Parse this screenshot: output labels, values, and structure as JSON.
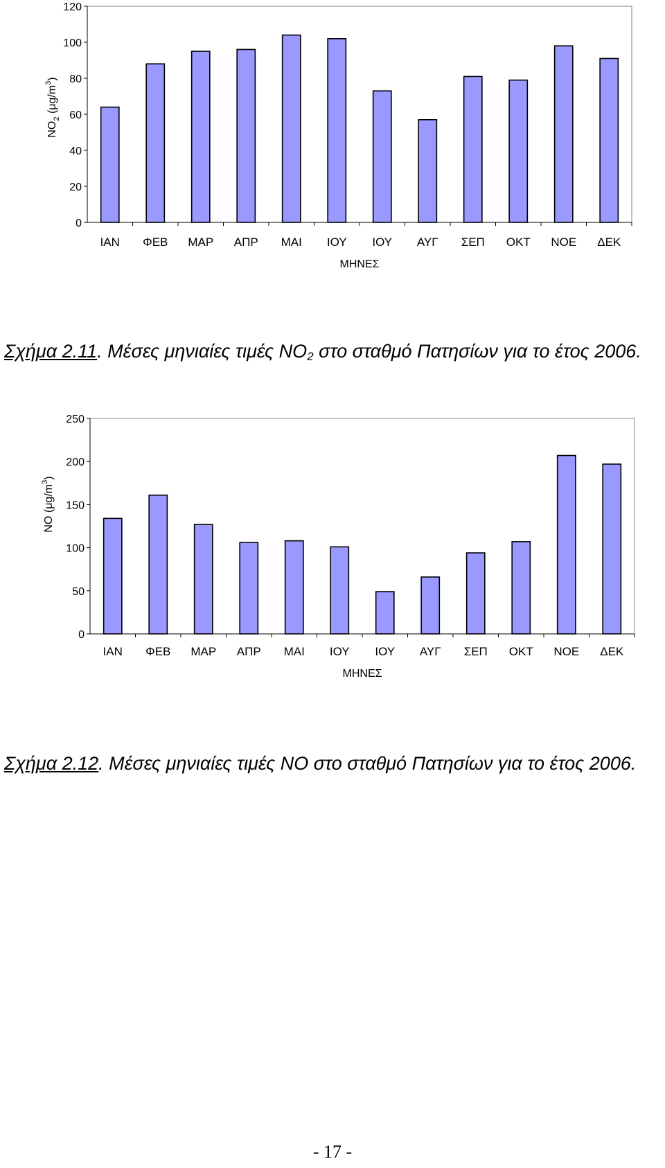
{
  "charts": [
    {
      "id": "chart1",
      "ylabel_main": "NO",
      "ylabel_sub": "2",
      "ylabel_unit": " (μg/m",
      "ylabel_sup": "3",
      "ylabel_close": ")",
      "caption": {
        "ref": "Σχήμα 2.11",
        "text_before": ". Μέσες μηνιαίες τιμές NO",
        "sub": "2",
        "text_after": " στο σταθμό Πατησίων  για το έτος 2006."
      }
    },
    {
      "id": "chart2",
      "ylabel_main": "NO (μg/m",
      "ylabel_sup": "3",
      "ylabel_close": ")",
      "caption": {
        "ref": "Σχήμα 2.12",
        "text_before": ". Μέσες μηνιαίες τιμές NO στο σταθμό Πατησίων  για το έτος 2006.",
        "sub": "",
        "text_after": ""
      }
    }
  ],
  "chart_data": [
    {
      "type": "bar",
      "title": "",
      "categories": [
        "ΙΑΝ",
        "ΦΕΒ",
        "ΜΑΡ",
        "ΑΠΡ",
        "ΜΑΙ",
        "ΙΟΥ",
        "ΙΟΥ",
        "ΑΥΓ",
        "ΣΕΠ",
        "ΟΚΤ",
        "ΝΟΕ",
        "ΔΕΚ"
      ],
      "values": [
        64,
        88,
        95,
        96,
        104,
        102,
        73,
        57,
        81,
        79,
        98,
        91
      ],
      "xlabel": "ΜΗΝΕΣ",
      "ylabel": "NO2 (μg/m3)",
      "ylim": [
        0,
        120
      ],
      "yticks": [
        0,
        20,
        40,
        60,
        80,
        100,
        120
      ],
      "grid": false,
      "bar_color": "#9999ff"
    },
    {
      "type": "bar",
      "title": "",
      "categories": [
        "ΙΑΝ",
        "ΦΕΒ",
        "ΜΑΡ",
        "ΑΠΡ",
        "ΜΑΙ",
        "ΙΟΥ",
        "ΙΟΥ",
        "ΑΥΓ",
        "ΣΕΠ",
        "ΟΚΤ",
        "ΝΟΕ",
        "ΔΕΚ"
      ],
      "values": [
        134,
        161,
        127,
        106,
        108,
        101,
        49,
        66,
        94,
        107,
        207,
        197
      ],
      "xlabel": "ΜΗΝΕΣ",
      "ylabel": "NO (μg/m3)",
      "ylim": [
        0,
        250
      ],
      "yticks": [
        0,
        50,
        100,
        150,
        200,
        250
      ],
      "grid": false,
      "bar_color": "#9999ff"
    }
  ],
  "page_number": "- 17 -"
}
